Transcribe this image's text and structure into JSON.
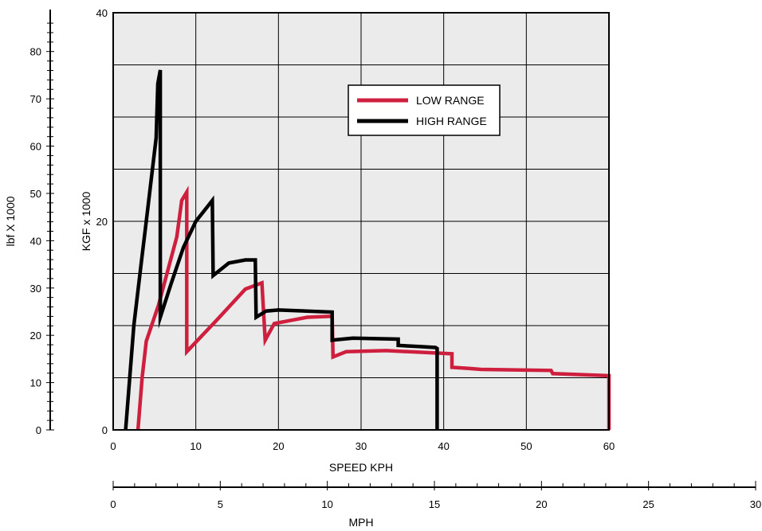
{
  "chart_data": {
    "type": "line",
    "xlabel": "SPEED KPH",
    "ylabel": "KGF x 1000",
    "xlim": [
      0,
      60
    ],
    "ylim": [
      0,
      40
    ],
    "x_ticks": [
      0,
      10,
      20,
      30,
      40,
      50,
      60
    ],
    "y_ticks": [
      0,
      20,
      40
    ],
    "grid": true,
    "secondary_y_axis": {
      "label": "lbf X 1000",
      "ticks": [
        0,
        10,
        20,
        30,
        40,
        50,
        60,
        70,
        80
      ],
      "range": [
        0,
        88.2
      ]
    },
    "secondary_x_axis": {
      "label": "MPH",
      "ticks": [
        0,
        5,
        10,
        15,
        20,
        25,
        30
      ],
      "range": [
        0,
        30
      ]
    },
    "legend": {
      "position": "top-right",
      "entries": [
        "LOW RANGE",
        "HIGH RANGE"
      ]
    },
    "series": [
      {
        "name": "LOW RANGE",
        "color": "#cf1f3f",
        "points": [
          [
            3.0,
            0
          ],
          [
            3.5,
            5
          ],
          [
            4.0,
            8.5
          ],
          [
            5.5,
            12
          ],
          [
            7.7,
            18.5
          ],
          [
            8.3,
            22
          ],
          [
            8.9,
            22.8
          ],
          [
            8.9,
            7.5
          ],
          [
            12.5,
            10.5
          ],
          [
            16.0,
            13.5
          ],
          [
            18.0,
            14.1
          ],
          [
            18.4,
            8.6
          ],
          [
            19.5,
            10.2
          ],
          [
            21.5,
            10.5
          ],
          [
            23.5,
            10.8
          ],
          [
            26.5,
            10.9
          ],
          [
            26.6,
            7.0
          ],
          [
            28.2,
            7.5
          ],
          [
            33.0,
            7.6
          ],
          [
            41.0,
            7.3
          ],
          [
            41.0,
            6.0
          ],
          [
            43.0,
            5.9
          ],
          [
            44.5,
            5.8
          ],
          [
            53.0,
            5.7
          ],
          [
            53.2,
            5.4
          ],
          [
            60.0,
            5.2
          ],
          [
            60.0,
            0
          ]
        ]
      },
      {
        "name": "HIGH RANGE",
        "color": "#000000",
        "points": [
          [
            1.5,
            0
          ],
          [
            2.5,
            10
          ],
          [
            3.4,
            16
          ],
          [
            4.0,
            20
          ],
          [
            5.2,
            28
          ],
          [
            5.4,
            33.2
          ],
          [
            5.7,
            34.5
          ],
          [
            5.7,
            10.8
          ],
          [
            7.0,
            14
          ],
          [
            8.5,
            17.5
          ],
          [
            10.0,
            20
          ],
          [
            12.0,
            22
          ],
          [
            12.1,
            14.8
          ],
          [
            14.0,
            16.0
          ],
          [
            16.0,
            16.3
          ],
          [
            17.2,
            16.3
          ],
          [
            17.3,
            10.8
          ],
          [
            18.5,
            11.4
          ],
          [
            20.0,
            11.5
          ],
          [
            26.5,
            11.3
          ],
          [
            26.5,
            8.6
          ],
          [
            29.0,
            8.8
          ],
          [
            34.5,
            8.7
          ],
          [
            34.5,
            8.1
          ],
          [
            37.0,
            8.0
          ],
          [
            39.0,
            7.9
          ],
          [
            39.2,
            7.8
          ],
          [
            39.2,
            0
          ]
        ]
      }
    ]
  }
}
